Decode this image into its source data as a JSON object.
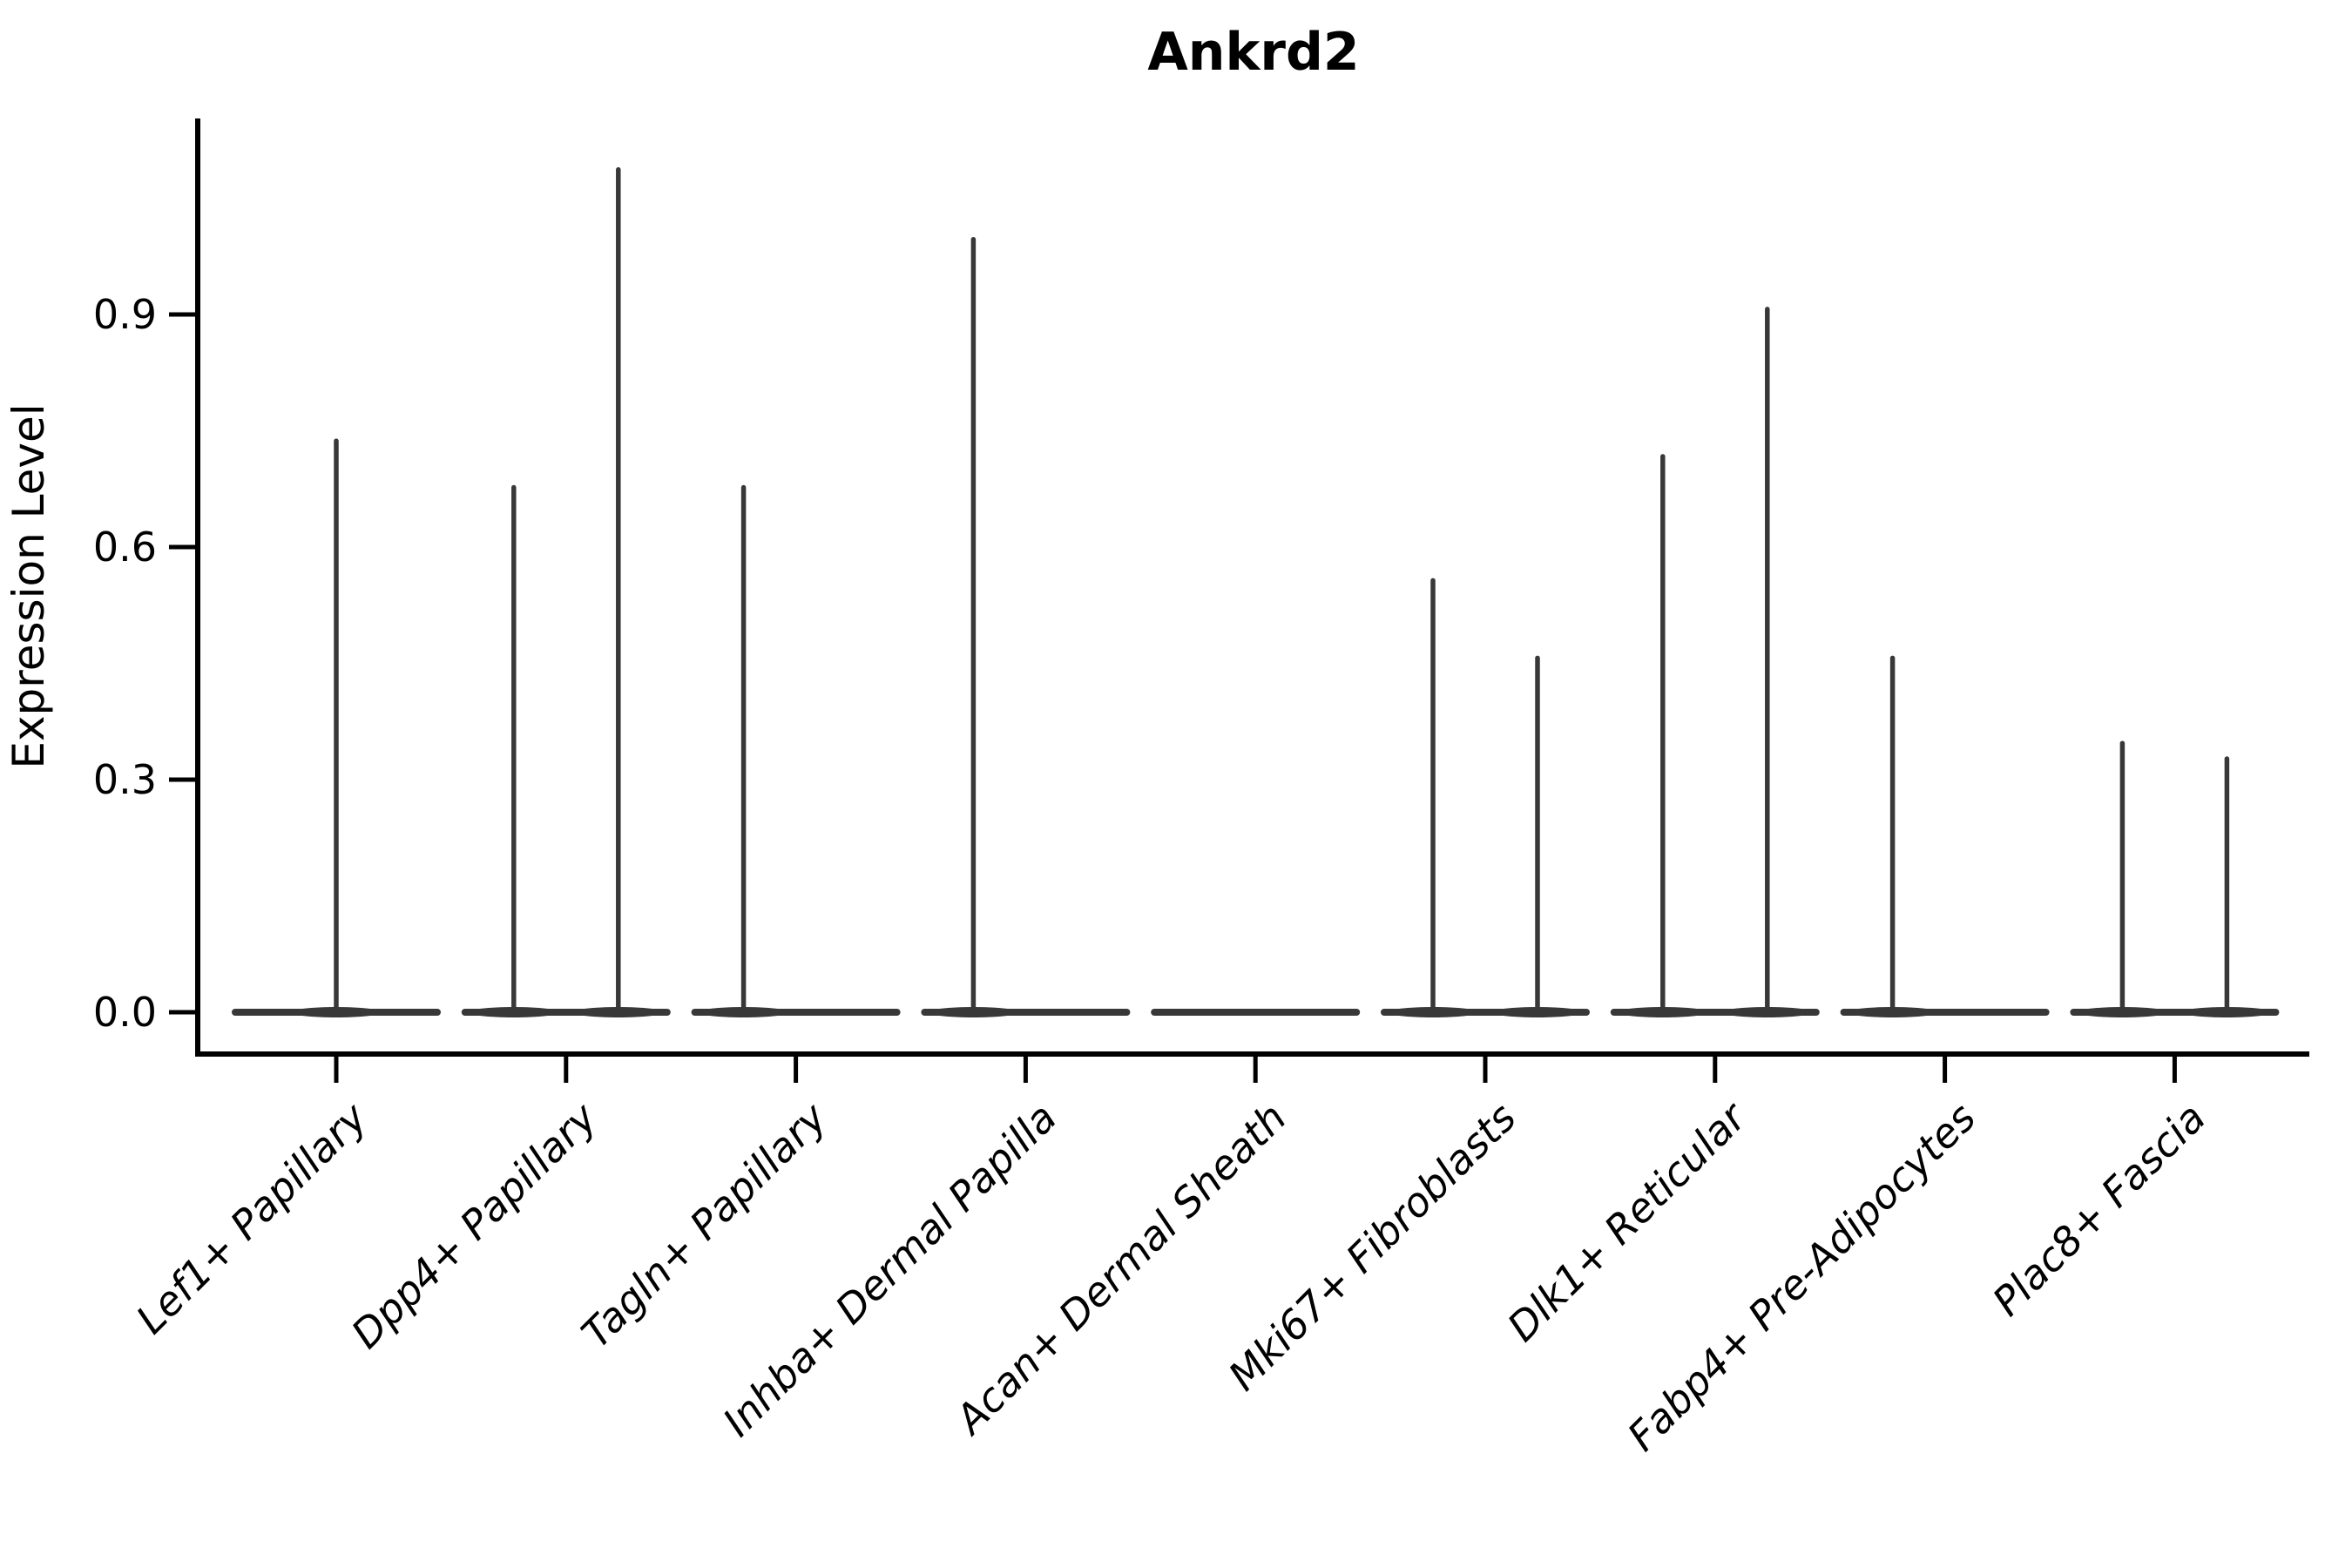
{
  "chart_data": {
    "type": "violin",
    "title": "Ankrd2",
    "ylabel": "Expression Level",
    "xlabel": "",
    "yticks": [
      "0.0",
      "0.3",
      "0.6",
      "0.9"
    ],
    "ytick_values": [
      0.0,
      0.3,
      0.6,
      0.9
    ],
    "ylim": [
      -0.055,
      1.155
    ],
    "grid": false,
    "legend": "none",
    "categories": [
      "Lef1+ Papillary",
      "Dpp4+ Papillary",
      "Tagln+ Papillary",
      "Inhba+ Dermal Papilla",
      "Acan+ Dermal Sheath",
      "Mki67+ Fibroblasts",
      "Dlk1+ Reticular",
      "Fabp4+ Pre-Adipocytes",
      "Plac8+ Fascia"
    ],
    "violins": [
      {
        "category": "Lef1+ Papillary",
        "spikes": [
          {
            "pos": "center",
            "max_expression": 0.74
          }
        ]
      },
      {
        "category": "Dpp4+ Papillary",
        "spikes": [
          {
            "pos": "left",
            "max_expression": 0.68
          },
          {
            "pos": "right",
            "max_expression": 1.09
          }
        ]
      },
      {
        "category": "Tagln+ Papillary",
        "spikes": [
          {
            "pos": "left",
            "max_expression": 0.68
          }
        ]
      },
      {
        "category": "Inhba+ Dermal Papilla",
        "spikes": [
          {
            "pos": "left",
            "max_expression": 1.0
          }
        ]
      },
      {
        "category": "Acan+ Dermal Sheath",
        "spikes": []
      },
      {
        "category": "Mki67+ Fibroblasts",
        "spikes": [
          {
            "pos": "left",
            "max_expression": 0.56
          },
          {
            "pos": "right",
            "max_expression": 0.46
          }
        ]
      },
      {
        "category": "Dlk1+ Reticular",
        "spikes": [
          {
            "pos": "left",
            "max_expression": 0.72
          },
          {
            "pos": "right",
            "max_expression": 0.91
          }
        ]
      },
      {
        "category": "Fabp4+ Pre-Adipocytes",
        "spikes": [
          {
            "pos": "left",
            "max_expression": 0.46
          }
        ]
      },
      {
        "category": "Plac8+ Fascia",
        "spikes": [
          {
            "pos": "left",
            "max_expression": 0.35
          },
          {
            "pos": "right",
            "max_expression": 0.33
          }
        ]
      }
    ],
    "colors": {
      "violin_line": "#383838",
      "axis": "#000000",
      "text": "#000000",
      "background": "#ffffff"
    }
  }
}
